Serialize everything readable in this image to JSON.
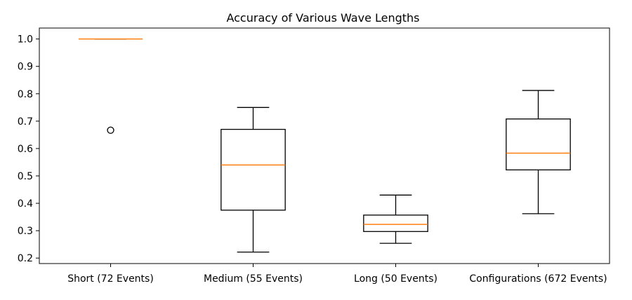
{
  "chart_data": {
    "type": "boxplot",
    "title": "Accuracy of Various Wave Lengths",
    "xlabel": "",
    "ylabel": "",
    "ylim": [
      0.18,
      1.04
    ],
    "yticks": [
      0.2,
      0.3,
      0.4,
      0.5,
      0.6,
      0.7,
      0.8,
      0.9,
      1.0
    ],
    "ytick_labels": [
      "0.2",
      "0.3",
      "0.4",
      "0.5",
      "0.6",
      "0.7",
      "0.8",
      "0.9",
      "1.0"
    ],
    "grid": false,
    "colors": {
      "box": "#000000",
      "median": "#ff7f0e"
    },
    "categories": [
      "Short (72 Events)",
      "Medium (55 Events)",
      "Long (50 Events)",
      "Configurations (672 Events)"
    ],
    "boxes": [
      {
        "whisker_low": 1.0,
        "q1": 1.0,
        "median": 1.0,
        "q3": 1.0,
        "whisker_high": 1.0,
        "outliers": [
          0.667
        ]
      },
      {
        "whisker_low": 0.222,
        "q1": 0.375,
        "median": 0.54,
        "q3": 0.67,
        "whisker_high": 0.75,
        "outliers": []
      },
      {
        "whisker_low": 0.254,
        "q1": 0.297,
        "median": 0.323,
        "q3": 0.357,
        "whisker_high": 0.43,
        "outliers": []
      },
      {
        "whisker_low": 0.362,
        "q1": 0.522,
        "median": 0.583,
        "q3": 0.708,
        "whisker_high": 0.812,
        "outliers": []
      }
    ]
  }
}
